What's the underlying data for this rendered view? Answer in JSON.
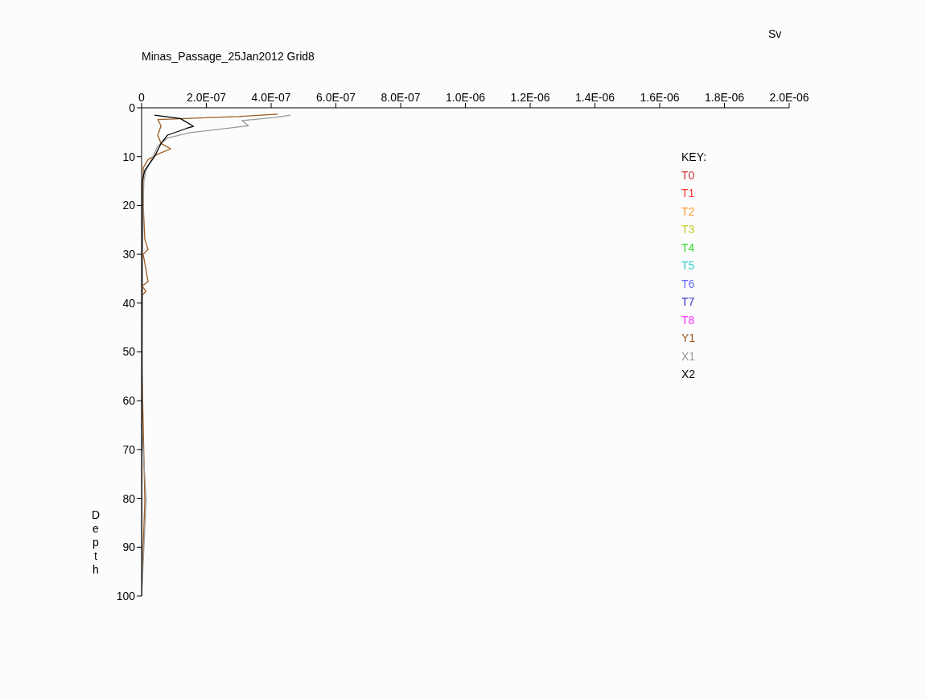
{
  "chart_data": {
    "type": "line",
    "title": "Minas_Passage_25Jan2012   Grid8",
    "xlabel": "Sv",
    "ylabel": "Depth",
    "legend_title": "KEY:",
    "orientation": "horizontal",
    "legend": "right",
    "marker": "none",
    "xlim": [
      0,
      2e-06
    ],
    "xticks": [
      0,
      {
        "value": 2e-07,
        "label": "2.0E-07"
      },
      {
        "value": 4e-07,
        "label": "4.0E-07"
      },
      {
        "value": 6e-07,
        "label": "6.0E-07"
      },
      {
        "value": 8e-07,
        "label": "8.0E-07"
      },
      {
        "value": 1e-06,
        "label": "1.0E-06"
      },
      {
        "value": 1.2e-06,
        "label": "1.2E-06"
      },
      {
        "value": 1.4e-06,
        "label": "1.4E-06"
      },
      {
        "value": 1.6e-06,
        "label": "1.6E-06"
      },
      {
        "value": 1.8e-06,
        "label": "1.8E-06"
      },
      {
        "value": 2e-06,
        "label": "2.0E-06"
      }
    ],
    "ylim": [
      100,
      0
    ],
    "yticks": [
      0,
      10,
      20,
      30,
      40,
      50,
      60,
      70,
      80,
      90,
      100
    ],
    "series": [
      {
        "name": "T0",
        "color": "#cc3333"
      },
      {
        "name": "T1",
        "color": "#ff3333"
      },
      {
        "name": "T2",
        "color": "#ff9933"
      },
      {
        "name": "T3",
        "color": "#c8c832"
      },
      {
        "name": "T4",
        "color": "#33dd33"
      },
      {
        "name": "T5",
        "color": "#33cccc"
      },
      {
        "name": "T6",
        "color": "#6666ff"
      },
      {
        "name": "T7",
        "color": "#3333cc"
      },
      {
        "name": "T8",
        "color": "#ff33ff"
      },
      {
        "name": "Y1",
        "color": "#9c5a1e",
        "x": [
          1.3,
          1.8,
          2.4,
          3.7,
          5.6,
          7.3,
          8.4,
          9.5,
          10.6,
          12.3,
          20,
          27,
          29,
          30,
          35.6,
          36.5,
          37.6,
          38.5,
          50,
          80.4,
          100
        ],
        "values": [
          4.2e-07,
          3e-07,
          5e-08,
          6e-08,
          5e-08,
          6e-08,
          9e-08,
          5e-08,
          2e-08,
          5e-09,
          5e-09,
          1e-08,
          2e-08,
          5e-09,
          2e-08,
          2e-09,
          1.3e-08,
          1e-09,
          0,
          1e-08,
          0
        ]
      },
      {
        "name": "X1",
        "color": "#999999",
        "x": [
          1.5,
          2.0,
          2.6,
          3.7,
          5.1,
          6.2,
          7.8,
          10,
          12.8,
          15,
          20,
          30,
          40,
          50,
          60,
          65,
          80.4,
          100
        ],
        "values": [
          4.6e-07,
          4.1e-07,
          3.1e-07,
          3.3e-07,
          1.5e-07,
          8e-08,
          5e-08,
          3.5e-08,
          1.4e-08,
          7e-09,
          5e-09,
          3e-09,
          3e-09,
          2e-09,
          2e-09,
          1e-09,
          1.4e-08,
          0
        ]
      },
      {
        "name": "X2",
        "color": "#000000",
        "x": [
          1.5,
          2.2,
          3.8,
          4.2,
          5.6,
          7.3,
          10,
          12.8,
          15,
          30,
          60,
          100
        ],
        "values": [
          4e-08,
          1.2e-07,
          1.6e-07,
          1.4e-07,
          8e-08,
          6e-08,
          4e-08,
          1e-08,
          2e-09,
          1e-09,
          1e-09,
          0
        ]
      }
    ]
  }
}
